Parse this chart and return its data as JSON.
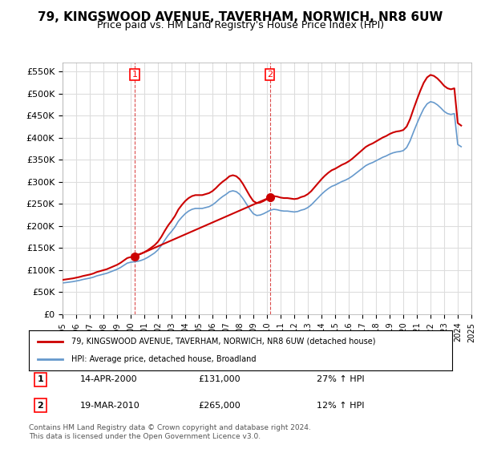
{
  "title": "79, KINGSWOOD AVENUE, TAVERHAM, NORWICH, NR8 6UW",
  "subtitle": "Price paid vs. HM Land Registry's House Price Index (HPI)",
  "title_fontsize": 11,
  "subtitle_fontsize": 9,
  "ylim": [
    0,
    570000
  ],
  "yticks": [
    0,
    50000,
    100000,
    150000,
    200000,
    250000,
    300000,
    350000,
    400000,
    450000,
    500000,
    550000
  ],
  "ytick_labels": [
    "£0",
    "£50K",
    "£100K",
    "£150K",
    "£200K",
    "£250K",
    "£300K",
    "£350K",
    "£400K",
    "£450K",
    "£500K",
    "£550K"
  ],
  "xlabel": "",
  "ylabel": "",
  "line1_color": "#cc0000",
  "line2_color": "#6699cc",
  "marker1_color": "#cc0000",
  "marker2_color": "#6699cc",
  "vline1_color": "#cc0000",
  "vline2_color": "#cc0000",
  "grid_color": "#dddddd",
  "bg_color": "#ffffff",
  "legend_label1": "79, KINGSWOOD AVENUE, TAVERHAM, NORWICH, NR8 6UW (detached house)",
  "legend_label2": "HPI: Average price, detached house, Broadland",
  "annotation1_num": "1",
  "annotation1_date": "14-APR-2000",
  "annotation1_price": "£131,000",
  "annotation1_hpi": "27% ↑ HPI",
  "annotation1_year": 2000.29,
  "annotation1_value": 131000,
  "annotation2_num": "2",
  "annotation2_date": "19-MAR-2010",
  "annotation2_price": "£265,000",
  "annotation2_hpi": "12% ↑ HPI",
  "annotation2_year": 2010.21,
  "annotation2_value": 265000,
  "footer": "Contains HM Land Registry data © Crown copyright and database right 2024.\nThis data is licensed under the Open Government Licence v3.0.",
  "hpi_years": [
    1995.0,
    1995.25,
    1995.5,
    1995.75,
    1996.0,
    1996.25,
    1996.5,
    1996.75,
    1997.0,
    1997.25,
    1997.5,
    1997.75,
    1998.0,
    1998.25,
    1998.5,
    1998.75,
    1999.0,
    1999.25,
    1999.5,
    1999.75,
    2000.0,
    2000.25,
    2000.5,
    2000.75,
    2001.0,
    2001.25,
    2001.5,
    2001.75,
    2002.0,
    2002.25,
    2002.5,
    2002.75,
    2003.0,
    2003.25,
    2003.5,
    2003.75,
    2004.0,
    2004.25,
    2004.5,
    2004.75,
    2005.0,
    2005.25,
    2005.5,
    2005.75,
    2006.0,
    2006.25,
    2006.5,
    2006.75,
    2007.0,
    2007.25,
    2007.5,
    2007.75,
    2008.0,
    2008.25,
    2008.5,
    2008.75,
    2009.0,
    2009.25,
    2009.5,
    2009.75,
    2010.0,
    2010.25,
    2010.5,
    2010.75,
    2011.0,
    2011.25,
    2011.5,
    2011.75,
    2012.0,
    2012.25,
    2012.5,
    2012.75,
    2013.0,
    2013.25,
    2013.5,
    2013.75,
    2014.0,
    2014.25,
    2014.5,
    2014.75,
    2015.0,
    2015.25,
    2015.5,
    2015.75,
    2016.0,
    2016.25,
    2016.5,
    2016.75,
    2017.0,
    2017.25,
    2017.5,
    2017.75,
    2018.0,
    2018.25,
    2018.5,
    2018.75,
    2019.0,
    2019.25,
    2019.5,
    2019.75,
    2020.0,
    2020.25,
    2020.5,
    2020.75,
    2021.0,
    2021.25,
    2021.5,
    2021.75,
    2022.0,
    2022.25,
    2022.5,
    2022.75,
    2023.0,
    2023.25,
    2023.5,
    2023.75,
    2024.0,
    2024.25
  ],
  "hpi_values": [
    71000,
    72000,
    73000,
    74000,
    75500,
    77000,
    79000,
    80500,
    82000,
    84000,
    87000,
    89000,
    91000,
    93000,
    96000,
    99000,
    102000,
    106000,
    111000,
    116000,
    118000,
    119000,
    120000,
    122000,
    125000,
    129000,
    134000,
    139000,
    146000,
    156000,
    168000,
    179000,
    188000,
    198000,
    211000,
    220000,
    228000,
    234000,
    238000,
    240000,
    240000,
    240000,
    242000,
    244000,
    248000,
    254000,
    261000,
    267000,
    272000,
    278000,
    280000,
    278000,
    272000,
    262000,
    250000,
    238000,
    228000,
    224000,
    225000,
    228000,
    232000,
    236000,
    238000,
    237000,
    235000,
    234000,
    234000,
    233000,
    232000,
    233000,
    236000,
    238000,
    242000,
    248000,
    256000,
    264000,
    272000,
    279000,
    285000,
    290000,
    293000,
    297000,
    301000,
    304000,
    308000,
    313000,
    319000,
    325000,
    331000,
    337000,
    341000,
    344000,
    348000,
    352000,
    356000,
    359000,
    363000,
    366000,
    368000,
    369000,
    371000,
    378000,
    393000,
    413000,
    432000,
    450000,
    466000,
    477000,
    482000,
    480000,
    475000,
    468000,
    460000,
    455000,
    453000,
    455000,
    385000,
    380000
  ],
  "price_years": [
    2000.29,
    2010.21
  ],
  "price_values": [
    131000,
    265000
  ],
  "xtick_years": [
    1995,
    1996,
    1997,
    1998,
    1999,
    2000,
    2001,
    2002,
    2003,
    2004,
    2005,
    2006,
    2007,
    2008,
    2009,
    2010,
    2011,
    2012,
    2013,
    2014,
    2015,
    2016,
    2017,
    2018,
    2019,
    2020,
    2021,
    2022,
    2023,
    2024,
    2025
  ]
}
